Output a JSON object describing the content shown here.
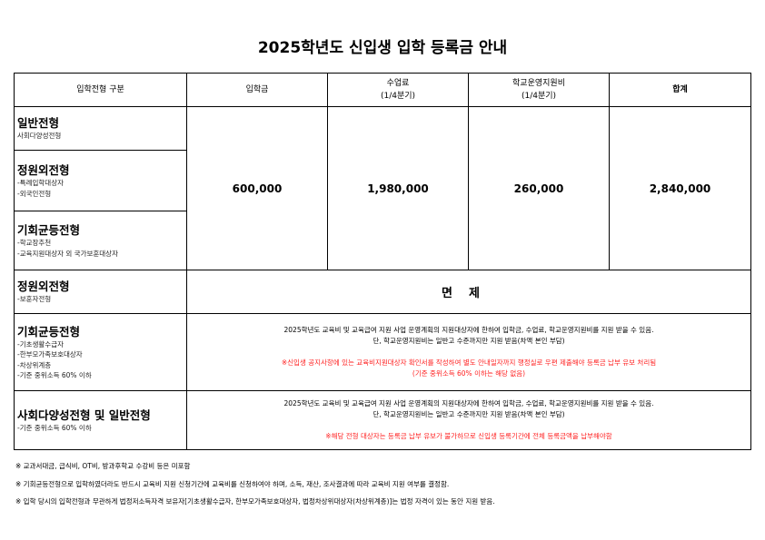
{
  "title": "2025학년도 신입생 입학 등록금 안내",
  "header": {
    "category": "입학전형 구분",
    "admission": "입학금",
    "tuition_line1": "수업료",
    "tuition_line2": "(1/4분기)",
    "support_line1": "학교운영지원비",
    "support_line2": "(1/4분기)",
    "total": "합계"
  },
  "rows": [
    {
      "title": "일반전형",
      "subs": [
        "사회다양성전형"
      ]
    },
    {
      "title": "정원외전형",
      "subs": [
        "-특례입학대상자",
        "-외국인전형"
      ]
    },
    {
      "title": "기회균등전형",
      "subs": [
        "-학교장추천",
        "-교육지원대상자 외 국가보훈대상자"
      ]
    },
    {
      "title": "정원외전형",
      "subs": [
        "-보훈자전형"
      ]
    },
    {
      "title": "기회균등전형",
      "subs": [
        "-기초생활수급자",
        "-한부모가족보호대상자",
        "-차상위계층",
        "-기준 중위소득 60% 이하"
      ]
    },
    {
      "title": "사회다양성전형 및 일반전형",
      "subs": [
        "-기준 중위소득 60% 이하"
      ]
    }
  ],
  "fees": {
    "admission": "600,000",
    "tuition": "1,980,000",
    "support": "260,000",
    "total": "2,840,000"
  },
  "exempt": "면제",
  "notes": {
    "line1": "2025학년도 교육비 및 교육급여 지원 사업 운영계획의 지원대상자에 한하여 입학금, 수업료, 학교운영지원비를 지원 받을 수 있음.",
    "line2": "단, 학교운영지원비는 일반고 수준까지만 지원 받음(차액 본인 부담)",
    "red_a1": "※신입생 공지사항에 있는 교육비지원대상자 확인서를 작성하여 별도 안내일자까지 행정실로 우편 제출해야 등록금 납부 유보 처리됨",
    "red_a2": "(기준 중위소득  60% 이하는 해당 없음)",
    "red_b": "※해당 전형 대상자는 등록금 납부 유보가 불가하므로 신입생 등록기간에 전체 등록금액을 납부해야함"
  },
  "footnotes": [
    "※ 교과서대금, 급식비, OT비, 방과후학교 수강비 등은 미포함",
    "※ 기회균등전형으로 입학하였더라도 반드시 교육비 지원 신청기간에 교육비를 신청하여야 하며, 소득, 재산, 조사결과에 따라 교육비 지원 여부를 결정함.",
    "※ 입학 당시의 입학전형과 무관하게 법정저소득자격 보유자[기초생활수급자, 한부모가족보호대상자, 법정차상위대상자(차상위계층)]는 법정 자격이 있는 동안 지원 받음."
  ],
  "colors": {
    "warning": "#ff2020"
  }
}
